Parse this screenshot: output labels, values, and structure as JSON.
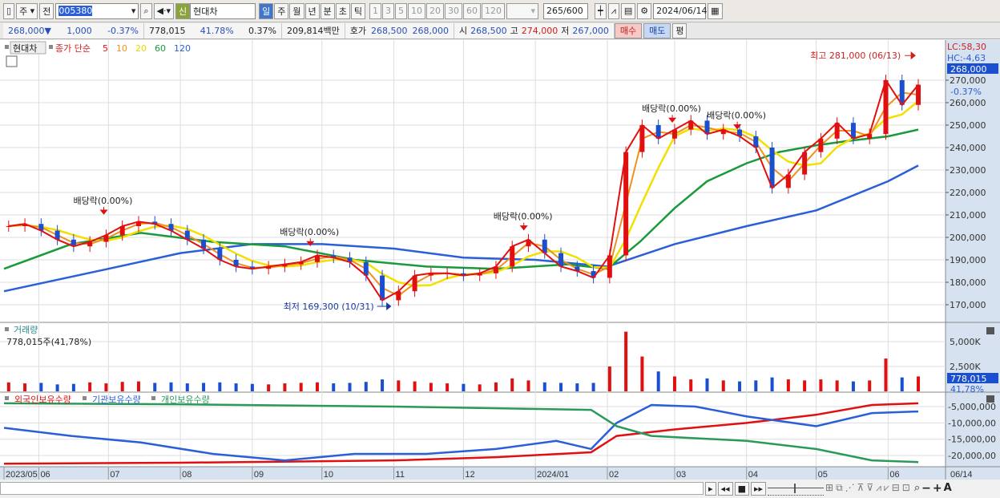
{
  "toolbar": {
    "period_type": "주",
    "prev_label": "전",
    "code": "005380",
    "new_badge": "신",
    "name": "현대차",
    "timeframes": [
      "일",
      "주",
      "월",
      "년",
      "분",
      "초",
      "틱"
    ],
    "selected_timeframe": "일",
    "intervals": [
      "1",
      "3",
      "5",
      "10",
      "20",
      "30",
      "60",
      "120"
    ],
    "count": "265",
    "count_max": "/600",
    "date": "2024/06/14"
  },
  "info": {
    "price": "268,000",
    "change_arrow": "▼",
    "change": "1,000",
    "change_pct": "-0.37%",
    "volume": "778,015",
    "volume_ratio": "41.78%",
    "turnover": "0.37%",
    "amount": "209,814백만",
    "quote_label": "호가",
    "ask": "268,500",
    "bid": "268,000",
    "open_label": "시",
    "open": "268,500",
    "high_label": "고",
    "high": "274,000",
    "low_label": "저",
    "low": "267,000",
    "buy": "매수",
    "sell": "매도",
    "avg": "평"
  },
  "legend": {
    "stock": "현대차",
    "ma_label": "종가 단순",
    "ma": [
      {
        "p": "5",
        "color": "#e01010"
      },
      {
        "p": "10",
        "color": "#f09020"
      },
      {
        "p": "20",
        "color": "#e8d800"
      },
      {
        "p": "60",
        "color": "#1a9a3a"
      },
      {
        "p": "120",
        "color": "#2a5fd8"
      }
    ]
  },
  "right": {
    "lc": "LC:58,30",
    "hc": "HC:-4,63",
    "price_tag": "268,000",
    "pct_tag": "-0.37%",
    "vol_tag": "778,015",
    "vol_pct_tag": "41,78%",
    "last_date": "06/14"
  },
  "volume_panel": {
    "title": "거래량",
    "value": "778,015주(41,78%)"
  },
  "holdings_panel": {
    "series": [
      {
        "name": "외국인보유수량",
        "color": "#e01010"
      },
      {
        "name": "기관보유수량",
        "color": "#2a5fd8"
      },
      {
        "name": "개인보유수량",
        "color": "#2a9a5a"
      }
    ]
  },
  "chart_data": {
    "type": "candlestick",
    "price_ticks": [
      170000,
      180000,
      190000,
      200000,
      210000,
      220000,
      230000,
      240000,
      250000,
      260000,
      270000
    ],
    "price_tick_labels": [
      "170,000",
      "180,000",
      "190,000",
      "200,000",
      "210,000",
      "220,000",
      "230,000",
      "240,000",
      "250,000",
      "260,000",
      "270,000"
    ],
    "x_ticks": [
      {
        "d": "2023-05-17",
        "l": "2023/05"
      },
      {
        "d": "2023-06-01",
        "l": "06"
      },
      {
        "d": "2023-07-01",
        "l": "07"
      },
      {
        "d": "2023-08-01",
        "l": "08"
      },
      {
        "d": "2023-09-01",
        "l": "09"
      },
      {
        "d": "2023-10-01",
        "l": "10"
      },
      {
        "d": "2023-11-01",
        "l": "11"
      },
      {
        "d": "2023-12-01",
        "l": "12"
      },
      {
        "d": "2024-01-01",
        "l": "2024/01"
      },
      {
        "d": "2024-02-01",
        "l": "02"
      },
      {
        "d": "2024-03-01",
        "l": "03"
      },
      {
        "d": "2024-04-01",
        "l": "04"
      },
      {
        "d": "2024-05-01",
        "l": "05"
      },
      {
        "d": "2024-06-01",
        "l": "06"
      }
    ],
    "candles": [
      [
        "2023-05-19",
        205000,
        900
      ],
      [
        "2023-05-26",
        206000,
        800
      ],
      [
        "2023-06-02",
        203000,
        850
      ],
      [
        "2023-06-09",
        199000,
        700
      ],
      [
        "2023-06-16",
        196000,
        750
      ],
      [
        "2023-06-23",
        198000,
        900
      ],
      [
        "2023-06-30",
        201000,
        800
      ],
      [
        "2023-07-07",
        205000,
        950
      ],
      [
        "2023-07-14",
        207000,
        1000
      ],
      [
        "2023-07-21",
        206000,
        850
      ],
      [
        "2023-07-28",
        203000,
        900
      ],
      [
        "2023-08-04",
        199000,
        800
      ],
      [
        "2023-08-11",
        195000,
        850
      ],
      [
        "2023-08-18",
        190000,
        900
      ],
      [
        "2023-08-25",
        187000,
        800
      ],
      [
        "2023-09-01",
        186000,
        750
      ],
      [
        "2023-09-08",
        187000,
        700
      ],
      [
        "2023-09-15",
        188000,
        800
      ],
      [
        "2023-09-22",
        189000,
        850
      ],
      [
        "2023-09-29",
        192000,
        900
      ],
      [
        "2023-10-06",
        191000,
        800
      ],
      [
        "2023-10-13",
        189000,
        850
      ],
      [
        "2023-10-20",
        183000,
        950
      ],
      [
        "2023-10-27",
        172000,
        1200
      ],
      [
        "2023-11-03",
        176000,
        1100
      ],
      [
        "2023-11-10",
        183000,
        1000
      ],
      [
        "2023-11-17",
        184000,
        850
      ],
      [
        "2023-11-24",
        184000,
        800
      ],
      [
        "2023-12-01",
        183000,
        750
      ],
      [
        "2023-12-08",
        184000,
        700
      ],
      [
        "2023-12-15",
        187000,
        900
      ],
      [
        "2023-12-22",
        196000,
        1300
      ],
      [
        "2023-12-29",
        199000,
        1100
      ],
      [
        "2024-01-05",
        193000,
        900
      ],
      [
        "2024-01-12",
        187000,
        850
      ],
      [
        "2024-01-19",
        185000,
        800
      ],
      [
        "2024-01-26",
        182000,
        850
      ],
      [
        "2024-02-02",
        192000,
        2500
      ],
      [
        "2024-02-09",
        238000,
        6000
      ],
      [
        "2024-02-16",
        250000,
        3500
      ],
      [
        "2024-02-23",
        244000,
        2000
      ],
      [
        "2024-03-01",
        248000,
        1500
      ],
      [
        "2024-03-08",
        252000,
        1200
      ],
      [
        "2024-03-15",
        246000,
        1300
      ],
      [
        "2024-03-22",
        248000,
        1100
      ],
      [
        "2024-03-29",
        245000,
        1000
      ],
      [
        "2024-04-05",
        240000,
        1100
      ],
      [
        "2024-04-12",
        222000,
        1400
      ],
      [
        "2024-04-19",
        228000,
        1200
      ],
      [
        "2024-04-26",
        238000,
        1100
      ],
      [
        "2024-05-03",
        244000,
        1200
      ],
      [
        "2024-05-10",
        251000,
        1100
      ],
      [
        "2024-05-17",
        244000,
        1000
      ],
      [
        "2024-05-24",
        246000,
        1100
      ],
      [
        "2024-05-31",
        270000,
        3300
      ],
      [
        "2024-06-07",
        259000,
        1400
      ],
      [
        "2024-06-14",
        268000,
        1500
      ]
    ],
    "ma60": [
      [
        "2023-05-17",
        186000
      ],
      [
        "2023-06-15",
        197000
      ],
      [
        "2023-07-15",
        202000
      ],
      [
        "2023-08-15",
        198000
      ],
      [
        "2023-09-15",
        196000
      ],
      [
        "2023-10-15",
        190000
      ],
      [
        "2023-11-15",
        187000
      ],
      [
        "2023-12-15",
        186000
      ],
      [
        "2024-01-15",
        188000
      ],
      [
        "2024-02-01",
        186000
      ],
      [
        "2024-02-15",
        198000
      ],
      [
        "2024-03-01",
        213000
      ],
      [
        "2024-03-15",
        225000
      ],
      [
        "2024-04-01",
        233000
      ],
      [
        "2024-04-15",
        238000
      ],
      [
        "2024-05-01",
        241000
      ],
      [
        "2024-05-15",
        243000
      ],
      [
        "2024-06-01",
        245000
      ],
      [
        "2024-06-14",
        248000
      ]
    ],
    "ma120": [
      [
        "2023-05-17",
        176000
      ],
      [
        "2023-07-01",
        186000
      ],
      [
        "2023-08-01",
        193000
      ],
      [
        "2023-09-01",
        197000
      ],
      [
        "2023-10-01",
        197000
      ],
      [
        "2023-11-01",
        195000
      ],
      [
        "2023-12-01",
        191000
      ],
      [
        "2024-01-01",
        190000
      ],
      [
        "2024-02-01",
        187000
      ],
      [
        "2024-03-01",
        197000
      ],
      [
        "2024-04-01",
        205000
      ],
      [
        "2024-05-01",
        212000
      ],
      [
        "2024-06-01",
        225000
      ],
      [
        "2024-06-14",
        232000
      ]
    ],
    "annotations": [
      {
        "text": "배당락(0.00%)",
        "d": "2023-06-29",
        "p": 215000
      },
      {
        "text": "배당락(0.00%)",
        "d": "2023-09-26",
        "p": 201000
      },
      {
        "text": "배당락(0.00%)",
        "d": "2023-12-27",
        "p": 208000
      },
      {
        "text": "배당락(0.00%)",
        "d": "2024-02-29",
        "p": 256000
      },
      {
        "text": "배당락(0.00%)",
        "d": "2024-03-28",
        "p": 253000
      }
    ],
    "low_label": {
      "text": "최저 169,300 (10/31)",
      "d": "2023-10-31",
      "p": 169300
    },
    "high_label": {
      "text": "최고 281,000 (06/13)",
      "d": "2024-06-13",
      "p": 281000
    },
    "volume_ticks": [
      {
        "v": 2500,
        "l": "2,500K"
      },
      {
        "v": 5000,
        "l": "5,000K"
      }
    ],
    "holdings_ticks": [
      {
        "v": -5000000,
        "l": "-5,000,000"
      },
      {
        "v": -10000000,
        "l": "-10,000,00"
      },
      {
        "v": -15000000,
        "l": "-15,000,00"
      },
      {
        "v": -20000000,
        "l": "-20,000,00"
      }
    ],
    "holdings": {
      "foreign": [
        [
          "2023-05-17",
          -22500000
        ],
        [
          "2023-08-01",
          -22200000
        ],
        [
          "2023-11-01",
          -21500000
        ],
        [
          "2023-12-15",
          -20500000
        ],
        [
          "2024-01-25",
          -19000000
        ],
        [
          "2024-02-05",
          -14000000
        ],
        [
          "2024-03-01",
          -12000000
        ],
        [
          "2024-04-01",
          -10000000
        ],
        [
          "2024-05-01",
          -7500000
        ],
        [
          "2024-05-25",
          -4500000
        ],
        [
          "2024-06-14",
          -4000000
        ]
      ],
      "institution": [
        [
          "2023-05-17",
          -11500000
        ],
        [
          "2023-06-15",
          -14000000
        ],
        [
          "2023-07-15",
          -16000000
        ],
        [
          "2023-08-15",
          -19500000
        ],
        [
          "2023-09-15",
          -21500000
        ],
        [
          "2023-10-15",
          -19500000
        ],
        [
          "2023-11-15",
          -19500000
        ],
        [
          "2023-12-15",
          -18000000
        ],
        [
          "2024-01-10",
          -15500000
        ],
        [
          "2024-01-25",
          -18000000
        ],
        [
          "2024-02-05",
          -10000000
        ],
        [
          "2024-02-20",
          -4500000
        ],
        [
          "2024-03-10",
          -5000000
        ],
        [
          "2024-04-01",
          -8000000
        ],
        [
          "2024-05-01",
          -11000000
        ],
        [
          "2024-05-25",
          -7000000
        ],
        [
          "2024-06-14",
          -6500000
        ]
      ],
      "individual": [
        [
          "2023-05-17",
          -4000000
        ],
        [
          "2023-08-01",
          -4300000
        ],
        [
          "2023-11-01",
          -5000000
        ],
        [
          "2024-01-25",
          -6000000
        ],
        [
          "2024-02-05",
          -11000000
        ],
        [
          "2024-02-20",
          -14000000
        ],
        [
          "2024-04-01",
          -15500000
        ],
        [
          "2024-05-01",
          -18000000
        ],
        [
          "2024-05-25",
          -21500000
        ],
        [
          "2024-06-14",
          -22000000
        ]
      ]
    }
  }
}
